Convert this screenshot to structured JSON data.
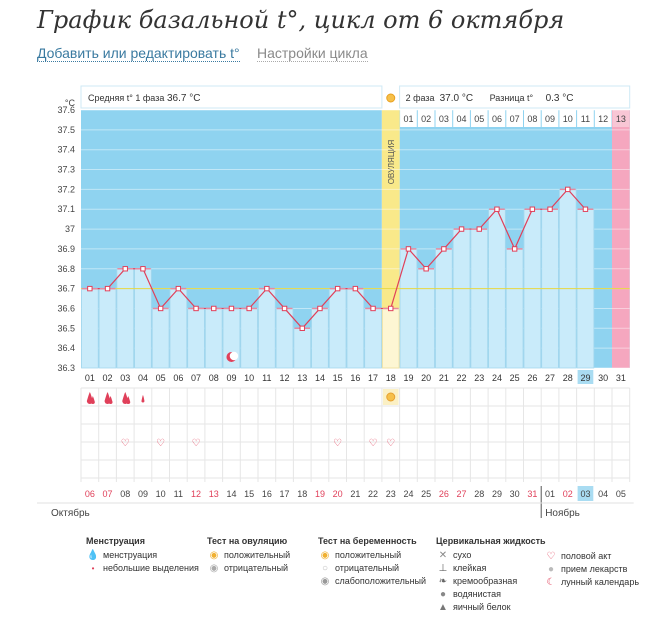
{
  "title": "График базальной t°, цикл от 6 октября",
  "links": {
    "edit": "Добавить или редактировать t°",
    "settings": "Настройки цикла"
  },
  "info": {
    "phase1_label": "Средняя t° 1 фаза",
    "phase1_value": "36.7 °C",
    "phase2_label": "2 фаза",
    "phase2_value": "37.0 °C",
    "diff_label": "Разница t°",
    "diff_value": "0.3 °C"
  },
  "ovulation_label": "ОВУЛЯЦИЯ",
  "month_labels": [
    "Октябрь",
    "Ноябрь"
  ],
  "colors": {
    "phase_bg": "#8fd3f0",
    "bar": "#c9ebfa",
    "bar_border": "#a6d8ee",
    "line": "#e0405a",
    "marker": "#e0405a",
    "coverline": "#e8d840",
    "ovulation": "#f7e9a0",
    "today": "#a9dcf2",
    "future": "#f5a7bf",
    "weekend": "#e0405a",
    "grid": "#e6e6e6"
  },
  "chart_data": {
    "type": "line",
    "title": "График базальной t°, цикл от 6 октября",
    "ylabel": "°C",
    "ylim": [
      36.3,
      37.6
    ],
    "yticks": [
      "36.3",
      "36.4",
      "36.5",
      "36.6",
      "36.7",
      "36.8",
      "36.9",
      "37",
      "37.1",
      "37.2",
      "37.3",
      "37.4",
      "37.5",
      "37.6"
    ],
    "cycle_days": [
      "01",
      "02",
      "03",
      "04",
      "05",
      "06",
      "07",
      "08",
      "09",
      "10",
      "11",
      "12",
      "13",
      "14",
      "15",
      "16",
      "17",
      "18",
      "19",
      "20",
      "21",
      "22",
      "23",
      "24",
      "25",
      "26",
      "27",
      "28",
      "29",
      "30",
      "31"
    ],
    "dates": [
      "06",
      "07",
      "08",
      "09",
      "10",
      "11",
      "12",
      "13",
      "14",
      "15",
      "16",
      "17",
      "18",
      "19",
      "20",
      "21",
      "22",
      "23",
      "24",
      "25",
      "26",
      "27",
      "28",
      "29",
      "30",
      "31",
      "01",
      "02",
      "03",
      "04",
      "05"
    ],
    "weekend_dates": [
      6,
      7,
      12,
      13,
      19,
      20,
      26,
      27,
      31
    ],
    "month_break_index": 26,
    "temperatures": [
      36.7,
      36.7,
      36.8,
      36.8,
      36.6,
      36.7,
      36.6,
      36.6,
      36.6,
      36.6,
      36.7,
      36.6,
      36.5,
      36.6,
      36.7,
      36.7,
      36.6,
      36.6,
      36.9,
      36.8,
      36.9,
      37.0,
      37.0,
      37.1,
      36.9,
      37.1,
      37.1,
      37.2,
      37.1,
      null,
      null
    ],
    "phase2_days": [
      "01",
      "02",
      "03",
      "04",
      "05",
      "06",
      "07",
      "08",
      "09",
      "10",
      "11",
      "12",
      "13"
    ],
    "coverline": 36.7,
    "ovulation_day_index": 17,
    "today_index": 28,
    "future_index": 30,
    "moon_day_index": 8,
    "menstruation": [
      {
        "day_index": 0,
        "type": "heavy"
      },
      {
        "day_index": 1,
        "type": "heavy"
      },
      {
        "day_index": 2,
        "type": "heavy"
      },
      {
        "day_index": 3,
        "type": "light"
      }
    ],
    "ovulation_test_positive_day_index": 17,
    "intercourse_day_indices": [
      2,
      4,
      6,
      14,
      16,
      17
    ]
  },
  "legend": {
    "menstruation": {
      "title": "Менструация",
      "items": [
        "менструация",
        "небольшие выделения"
      ]
    },
    "ovulation_test": {
      "title": "Тест на овуляцию",
      "items": [
        "положительный",
        "отрицательный"
      ]
    },
    "pregnancy_test": {
      "title": "Тест на беременность",
      "items": [
        "положительный",
        "отрицательный",
        "слабоположительный"
      ]
    },
    "cervical": {
      "title": "Цервикальная жидкость",
      "items": [
        "сухо",
        "клейкая",
        "кремообразная",
        "водянистая",
        "яичный белок"
      ]
    },
    "misc": {
      "items": [
        "половой акт",
        "прием лекарств",
        "лунный календарь"
      ]
    }
  }
}
